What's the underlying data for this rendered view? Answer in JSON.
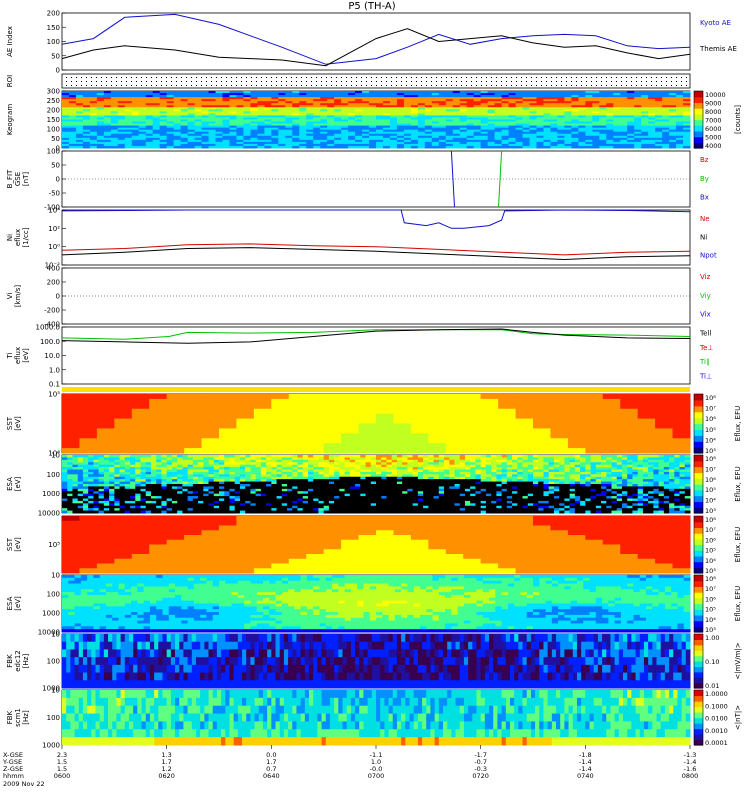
{
  "title": "P5 (TH-A)",
  "colors": {
    "red": "#d40000",
    "green": "#00c000",
    "blue": "#1010d0",
    "black": "#000000",
    "jet": [
      "#000080",
      "#0000ff",
      "#0080ff",
      "#00e0ff",
      "#40ff90",
      "#c0ff20",
      "#ffff00",
      "#ff9000",
      "#ff2000",
      "#c00000"
    ],
    "jetlow": [
      "#3a0050",
      "#2010a0",
      "#0020ff",
      "#0090ff",
      "#00e0e0",
      "#60ff80",
      "#e0ff20",
      "#ffd000",
      "#ff6000",
      "#e00000"
    ]
  },
  "chart_data": [
    {
      "type": "line",
      "name": "ae",
      "ylabel": "AE Index",
      "ylim": [
        0,
        200
      ],
      "yticks": [
        "0",
        "50",
        "100",
        "150",
        "200"
      ],
      "series": [
        {
          "name": "Kyoto AE",
          "color": "blue",
          "x": [
            0,
            0.05,
            0.1,
            0.18,
            0.25,
            0.3,
            0.35,
            0.42,
            0.5,
            0.55,
            0.6,
            0.65,
            0.7,
            0.75,
            0.8,
            0.85,
            0.9,
            0.95,
            1
          ],
          "y": [
            90,
            110,
            185,
            195,
            160,
            120,
            80,
            20,
            40,
            80,
            125,
            90,
            110,
            120,
            125,
            120,
            85,
            75,
            80
          ]
        },
        {
          "name": "Themis AE",
          "color": "black",
          "x": [
            0,
            0.05,
            0.1,
            0.18,
            0.25,
            0.3,
            0.35,
            0.42,
            0.5,
            0.55,
            0.6,
            0.65,
            0.7,
            0.75,
            0.8,
            0.85,
            0.9,
            0.95,
            1
          ],
          "y": [
            40,
            70,
            85,
            70,
            45,
            40,
            35,
            15,
            110,
            145,
            100,
            110,
            120,
            95,
            80,
            85,
            60,
            40,
            55
          ]
        }
      ]
    },
    {
      "type": "heatmap",
      "name": "roi",
      "ylabel": "ROI",
      "yticks": [],
      "value": "dotted grid"
    },
    {
      "type": "heatmap",
      "name": "keogram",
      "ylabel": "Keogram",
      "ylim": [
        0,
        300
      ],
      "yticks": [
        "0",
        "50",
        "100",
        "150",
        "200",
        "250",
        "300"
      ],
      "colorbar": {
        "min": 4000,
        "max": 10000,
        "ticks": [
          "10000",
          "9000",
          "8000",
          "7000",
          "6000",
          "5000",
          "4000"
        ],
        "label": "[counts]"
      }
    },
    {
      "type": "line",
      "name": "bfit",
      "ylabel": [
        "B_FIT",
        "GSE",
        "[nT]"
      ],
      "ylim": [
        -100,
        100
      ],
      "yticks": [
        "-100",
        "-50",
        "0",
        "50",
        "100"
      ],
      "legend": [
        {
          "label": "Bz",
          "color": "red"
        },
        {
          "label": "By",
          "color": "green"
        },
        {
          "label": "Bx",
          "color": "blue"
        }
      ],
      "series": [
        {
          "name": "Bx",
          "color": "blue",
          "x": [
            0.62,
            0.625
          ],
          "y": [
            100,
            -100
          ]
        },
        {
          "name": "By",
          "color": "green",
          "x": [
            0.695,
            0.7
          ],
          "y": [
            -100,
            100
          ]
        }
      ]
    },
    {
      "type": "line",
      "name": "ni",
      "ylabel": [
        "Ni",
        "eflux",
        "[1/cc]"
      ],
      "ylim": [
        -2,
        4
      ],
      "yticks": [
        "10⁻²",
        "10⁰",
        "10²",
        "10⁴"
      ],
      "legend": [
        {
          "label": "Ne",
          "color": "red"
        },
        {
          "label": "Ni",
          "color": "black"
        },
        {
          "label": "Npot",
          "color": "blue"
        }
      ],
      "series": [
        {
          "name": "Npot",
          "color": "blue",
          "x": [
            0,
            0.1,
            0.2,
            0.3,
            0.4,
            0.5,
            0.54,
            0.545,
            0.58,
            0.6,
            0.62,
            0.64,
            0.68,
            0.7,
            0.705,
            0.8,
            0.9,
            1
          ],
          "y": [
            3.9,
            3.95,
            4,
            4,
            4,
            4,
            4,
            2.6,
            2.3,
            2.6,
            2.0,
            2.0,
            2.3,
            2.9,
            3.9,
            4,
            3.95,
            3.8
          ]
        },
        {
          "name": "Ne",
          "color": "red",
          "x": [
            0,
            0.1,
            0.2,
            0.3,
            0.4,
            0.5,
            0.6,
            0.7,
            0.8,
            0.9,
            1
          ],
          "y": [
            -0.4,
            -0.2,
            0.2,
            0.3,
            0.1,
            0,
            -0.3,
            -0.6,
            -0.9,
            -0.6,
            -0.5
          ]
        },
        {
          "name": "Ni",
          "color": "black",
          "x": [
            0,
            0.1,
            0.2,
            0.3,
            0.4,
            0.5,
            0.6,
            0.7,
            0.8,
            0.9,
            1
          ],
          "y": [
            -0.9,
            -0.6,
            -0.2,
            -0.1,
            -0.3,
            -0.5,
            -0.8,
            -1.1,
            -1.4,
            -1.1,
            -1.0
          ]
        }
      ]
    },
    {
      "type": "line",
      "name": "vi",
      "ylabel": [
        "Vi",
        "[km/s]"
      ],
      "ylim": [
        -400,
        400
      ],
      "yticks": [
        "-400",
        "-200",
        "0",
        "200",
        "400"
      ],
      "legend": [
        {
          "label": "Viz",
          "color": "red"
        },
        {
          "label": "Viy",
          "color": "green"
        },
        {
          "label": "Vix",
          "color": "blue"
        }
      ],
      "series": []
    },
    {
      "type": "line",
      "name": "ti",
      "ylabel": [
        "Ti",
        "eflux",
        "[eV]"
      ],
      "ylim": [
        -1,
        3.2
      ],
      "yticks": [
        "0.1",
        "1.0",
        "10.0",
        "100.0",
        "1000.0"
      ],
      "legend": [
        {
          "label": "Tell",
          "color": "black"
        },
        {
          "label": "Te⊥",
          "color": "red"
        },
        {
          "label": "Ti∥",
          "color": "green"
        },
        {
          "label": "Ti⊥",
          "color": "blue"
        }
      ],
      "series": [
        {
          "name": "Ti∥",
          "color": "green",
          "x": [
            0,
            0.1,
            0.17,
            0.2,
            0.3,
            0.4,
            0.5,
            0.6,
            0.7,
            0.75,
            0.8,
            0.9,
            1
          ],
          "y": [
            2.4,
            2.3,
            2.5,
            2.8,
            2.75,
            2.8,
            3.0,
            3.0,
            3.0,
            2.7,
            2.65,
            2.6,
            2.5
          ]
        },
        {
          "name": "Tell",
          "color": "black",
          "x": [
            0,
            0.1,
            0.2,
            0.3,
            0.4,
            0.5,
            0.6,
            0.7,
            0.75,
            0.8,
            0.9,
            1
          ],
          "y": [
            2.2,
            2.1,
            2.0,
            2.1,
            2.5,
            2.9,
            3.0,
            3.05,
            2.8,
            2.6,
            2.4,
            2.35
          ]
        }
      ]
    },
    {
      "type": "heatmap",
      "name": "sst1",
      "ylabel": [
        "SST",
        "[eV]"
      ],
      "yticks": [
        "10⁶",
        "10⁵"
      ],
      "colorbar": {
        "ticks": [
          "10⁸",
          "10⁷",
          "10⁶",
          "10⁵",
          "10⁴",
          "10³"
        ],
        "label": "Eflux, EFU"
      }
    },
    {
      "type": "heatmap",
      "name": "esa1",
      "ylabel": [
        "ESA",
        "[eV]"
      ],
      "yticks": [
        "10000",
        "1000",
        "100",
        "10"
      ],
      "colorbar": {
        "ticks": [
          "10⁸",
          "10⁷",
          "10⁶",
          "10⁵",
          "10⁴",
          "10³"
        ],
        "label": "Eflux, EFU"
      }
    },
    {
      "type": "heatmap",
      "name": "sst2",
      "ylabel": [
        "SST",
        "[eV]"
      ],
      "yticks": [
        "10⁵"
      ],
      "colorbar": {
        "ticks": [
          "10⁸",
          "10⁷",
          "10⁶",
          "10⁵",
          "10⁴",
          "10³"
        ],
        "label": "Eflux, EFU"
      }
    },
    {
      "type": "heatmap",
      "name": "esa2",
      "ylabel": [
        "ESA",
        "[eV]"
      ],
      "yticks": [
        "10000",
        "1000",
        "100",
        "10"
      ],
      "colorbar": {
        "ticks": [
          "10⁸",
          "10⁷",
          "10⁶",
          "10⁵",
          "10⁴",
          "10³"
        ],
        "label": "Eflux, EFU"
      }
    },
    {
      "type": "heatmap",
      "name": "fbk1",
      "ylabel": [
        "FBK",
        "edc12",
        "[Hz]"
      ],
      "yticks": [
        "1000",
        "100",
        "10"
      ],
      "colorbar": {
        "ticks": [
          "1.00",
          "0.10",
          "0.01"
        ],
        "label": "<|mV/m|>"
      }
    },
    {
      "type": "heatmap",
      "name": "fbk2",
      "ylabel": [
        "FBK",
        "scm1",
        "[Hz]"
      ],
      "yticks": [
        "1000",
        "100",
        "10"
      ],
      "colorbar": {
        "ticks": [
          "1.0000",
          "0.1000",
          "0.0100",
          "0.0010",
          "0.0001"
        ],
        "label": "<|nT|>"
      }
    }
  ],
  "xaxis": {
    "row_labels": [
      "X-GSE",
      "Y-GSE",
      "Z-GSE",
      "hhmm",
      "2009 Nov 22"
    ],
    "columns": [
      {
        "vals": [
          "2.3",
          "1.5",
          "1.5",
          "0600"
        ]
      },
      {
        "vals": [
          "1.3",
          "1.7",
          "1.2",
          "0620"
        ]
      },
      {
        "vals": [
          "0.0",
          "1.7",
          "0.7",
          "0640"
        ]
      },
      {
        "vals": [
          "-1.1",
          "1.0",
          "-0.0",
          "0700"
        ]
      },
      {
        "vals": [
          "-1.7",
          "-0.7",
          "-0.3",
          "0720"
        ]
      },
      {
        "vals": [
          "-1.8",
          "-1.4",
          "-1.4",
          "0740"
        ]
      },
      {
        "vals": [
          "-1.3",
          "-1.4",
          "-1.6",
          "0800"
        ]
      }
    ]
  }
}
